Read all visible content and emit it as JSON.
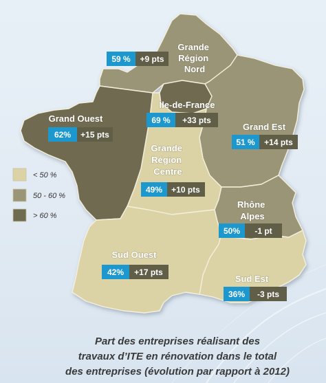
{
  "legend": [
    {
      "label": "< 50 %",
      "color": "#dbd3a6"
    },
    {
      "label": "50 - 60 %",
      "color": "#9a9577"
    },
    {
      "label": "> 60 %",
      "color": "#6f6b51"
    }
  ],
  "regions": [
    {
      "name_lines": [
        "Grande",
        "Région",
        "Nord"
      ],
      "share": "59 %",
      "change": "+9 pts",
      "category": 1
    },
    {
      "name_lines": [
        "Ile-de-France"
      ],
      "share": "69 %",
      "change": "+33 pts",
      "category": 2
    },
    {
      "name_lines": [
        "Grand Ouest"
      ],
      "share": "62%",
      "change": "+15 pts",
      "category": 2
    },
    {
      "name_lines": [
        "Grand Est"
      ],
      "share": "51 %",
      "change": "+14 pts",
      "category": 1
    },
    {
      "name_lines": [
        "Grande",
        "Région",
        "Centre"
      ],
      "share": "49%",
      "change": "+10 pts",
      "category": 0
    },
    {
      "name_lines": [
        "Rhône",
        "Alpes"
      ],
      "share": "50%",
      "change": "-1 pt",
      "category": 1
    },
    {
      "name_lines": [
        "Sud Ouest"
      ],
      "share": "42%",
      "change": "+17 pts",
      "category": 0
    },
    {
      "name_lines": [
        "Sud Est"
      ],
      "share": "36%",
      "change": "-3 pts",
      "category": 0
    }
  ],
  "caption": [
    "Part des entreprises réalisant des",
    "travaux d’ITE en rénovation dans le total",
    "des entreprises (évolution par rapport à 2012)"
  ],
  "colors": {
    "share_box": "#1d98cf",
    "change_box": "#615e48"
  }
}
